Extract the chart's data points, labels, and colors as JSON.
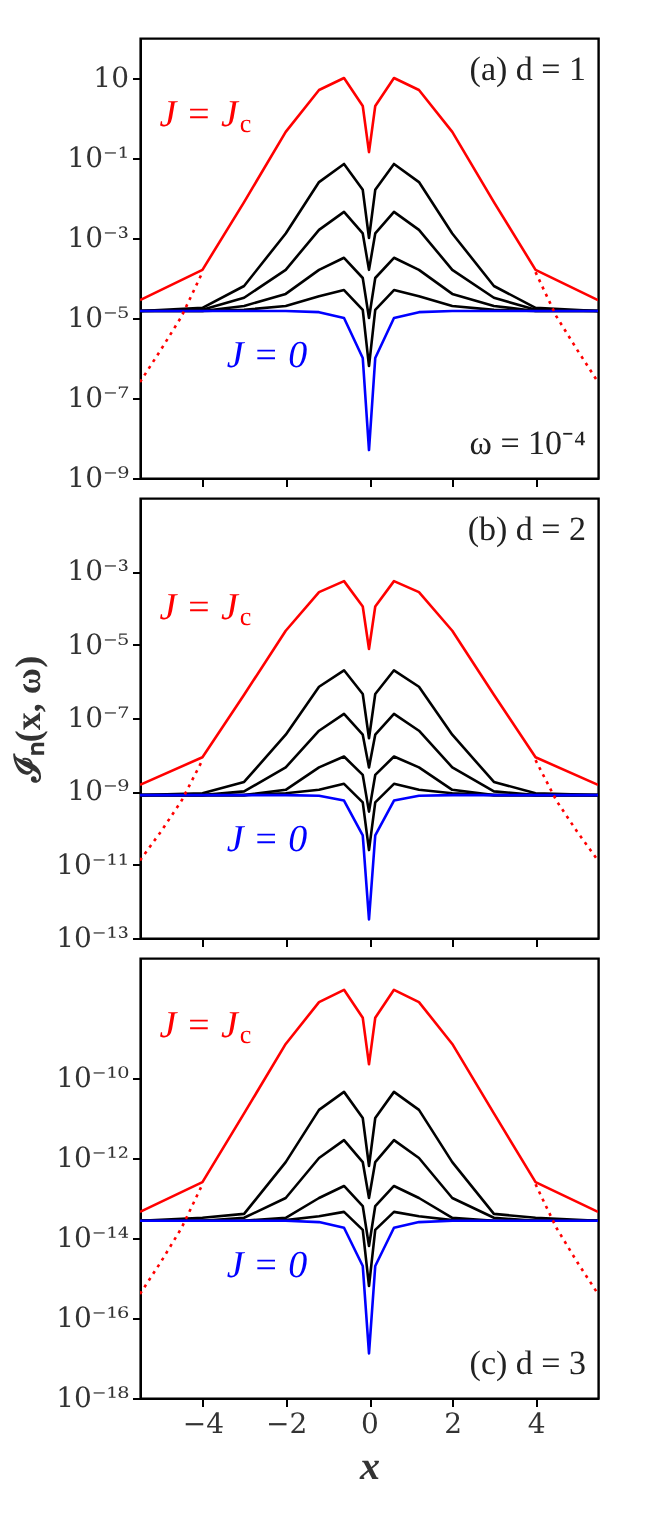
{
  "chart_data": [
    {
      "type": "line",
      "log": "y",
      "grid": false,
      "tick_labels": "y",
      "xlim": [
        -5.5,
        5.5
      ],
      "xticks": [
        -4,
        -2,
        0,
        2,
        4
      ],
      "ylim": [
        1e-09,
        100
      ],
      "yticks": [
        10,
        {
          "value": 0.1,
          "label": "10⁻¹"
        },
        {
          "value": 0.001,
          "label": "10⁻³"
        },
        {
          "value": 1e-05,
          "label": "10⁻⁵"
        },
        {
          "value": 1e-07,
          "label": "10⁻⁷"
        },
        {
          "value": 1e-09,
          "label": "10⁻⁹"
        }
      ],
      "x": [
        -5.5,
        -4,
        -3,
        -2,
        -1.2,
        -0.6,
        -0.15,
        0,
        0.15,
        0.6,
        1.2,
        2,
        3,
        4,
        5.5
      ],
      "series": [
        {
          "color": "#000000",
          "values": [
            1.5e-05,
            1.8e-05,
            6.3e-05,
            0.0013,
            0.025,
            0.071,
            0.016,
            0.001,
            0.016,
            0.071,
            0.025,
            0.0013,
            6.3e-05,
            1.8e-05,
            1.5e-05
          ]
        },
        {
          "color": "#000000",
          "values": [
            1.5e-05,
            1.6e-05,
            3.2e-05,
            0.00016,
            0.0016,
            0.0045,
            0.0013,
            0.00016,
            0.0013,
            0.0045,
            0.0016,
            0.00016,
            3.2e-05,
            1.6e-05,
            1.5e-05
          ]
        },
        {
          "color": "#000000",
          "values": [
            1.5e-05,
            1.5e-05,
            2e-05,
            4e-05,
            0.00016,
            0.00032,
            0.0001,
            1e-05,
            0.0001,
            0.00032,
            0.00016,
            4e-05,
            2e-05,
            1.5e-05,
            1.5e-05
          ]
        },
        {
          "color": "#000000",
          "values": [
            1.5e-05,
            1.5e-05,
            1.6e-05,
            2e-05,
            3.5e-05,
            5e-05,
            1.6e-05,
            6.3e-07,
            1.6e-05,
            5e-05,
            3.5e-05,
            2e-05,
            1.6e-05,
            1.5e-05,
            1.5e-05
          ]
        },
        {
          "name": "J = 0",
          "color": "#0000ff",
          "values": [
            1.5e-05,
            1.5e-05,
            1.5e-05,
            1.5e-05,
            1.4e-05,
            1e-05,
            1e-06,
            5e-09,
            1e-06,
            1e-05,
            1.4e-05,
            1.5e-05,
            1.5e-05,
            1.5e-05,
            1.5e-05
          ]
        },
        {
          "color": "#ff0000",
          "line_style": "dotted",
          "x": [
            -5.5,
            -5,
            -4.5,
            -4,
            0,
            4,
            4.5,
            5,
            5.5
          ],
          "values": [
            2.5e-07,
            1.6e-06,
            1.1e-05,
            0.00014,
            null,
            0.00014,
            1.1e-05,
            1.6e-06,
            2.5e-07
          ]
        },
        {
          "name": "J = J$_{c}$",
          "color": "#ff0000",
          "values": [
            2.8e-05,
            0.00016,
            0.0079,
            0.45,
            5.0,
            10,
            2.0,
            0.14,
            2.0,
            10,
            5.0,
            0.45,
            0.0079,
            0.00016,
            2.8e-05
          ]
        }
      ],
      "annotations": [
        "(a) d = 1",
        "ω = 10⁻⁴"
      ]
    },
    {
      "type": "line",
      "log": "y",
      "grid": false,
      "tick_labels": "y",
      "ylabel": "ℐₙ(x, ω)",
      "xlim": [
        -5.5,
        5.5
      ],
      "xticks": [
        -4,
        -2,
        0,
        2,
        4
      ],
      "ylim": [
        1e-13,
        0.1
      ],
      "yticks": [
        {
          "value": 0.001,
          "label": "10⁻³"
        },
        {
          "value": 1e-05,
          "label": "10⁻⁵"
        },
        {
          "value": 1e-07,
          "label": "10⁻⁷"
        },
        {
          "value": 1e-09,
          "label": "10⁻⁹"
        },
        {
          "value": 1e-11,
          "label": "10⁻¹¹"
        },
        {
          "value": 1e-13,
          "label": "10⁻¹³"
        }
      ],
      "x": [
        -5.5,
        -4,
        -3,
        -2,
        -1.2,
        -0.6,
        -0.15,
        0,
        0.15,
        0.6,
        1.2,
        2,
        3,
        4,
        5.5
      ],
      "series": [
        {
          "color": "#000000",
          "values": [
            7.9e-10,
            8.9e-10,
            1.8e-09,
            3.5e-08,
            7.1e-07,
            2e-06,
            4.5e-07,
            2.8e-08,
            4.5e-07,
            2e-06,
            7.1e-07,
            3.5e-08,
            1.8e-09,
            8.9e-10,
            7.9e-10
          ]
        },
        {
          "color": "#000000",
          "values": [
            7.9e-10,
            7.9e-10,
            1e-09,
            4.5e-09,
            4.5e-08,
            1.3e-07,
            3.5e-08,
            4.5e-09,
            3.5e-08,
            1.3e-07,
            4.5e-08,
            4.5e-09,
            1e-09,
            7.9e-10,
            7.9e-10
          ]
        },
        {
          "color": "#000000",
          "values": [
            7.9e-10,
            7.9e-10,
            7.9e-10,
            1.1e-09,
            4.5e-09,
            8.9e-09,
            2.8e-09,
            2.8e-10,
            2.8e-09,
            8.9e-09,
            4.5e-09,
            1.1e-09,
            7.9e-10,
            7.9e-10,
            7.9e-10
          ]
        },
        {
          "color": "#000000",
          "values": [
            7.9e-10,
            7.9e-10,
            7.9e-10,
            8.9e-10,
            1.1e-09,
            1.6e-09,
            5e-10,
            2.5e-11,
            5e-10,
            1.6e-09,
            1.1e-09,
            8.9e-10,
            7.9e-10,
            7.9e-10,
            7.9e-10
          ]
        },
        {
          "name": "J = 0",
          "color": "#0000ff",
          "values": [
            7.9e-10,
            7.9e-10,
            7.9e-10,
            7.9e-10,
            7.6e-10,
            5.6e-10,
            6.3e-11,
            3.2e-13,
            6.3e-11,
            5.6e-10,
            7.6e-10,
            7.9e-10,
            7.9e-10,
            7.9e-10,
            7.9e-10
          ]
        },
        {
          "color": "#ff0000",
          "line_style": "dotted",
          "x": [
            -5.5,
            -5,
            -4.5,
            -4,
            0,
            4,
            4.5,
            5,
            5.5
          ],
          "values": [
            1.3e-11,
            7.9e-11,
            5.6e-10,
            7.1e-09,
            null,
            7.1e-09,
            5.6e-10,
            7.9e-11,
            1.3e-11
          ]
        },
        {
          "name": "J = J$_{c}$",
          "color": "#ff0000",
          "values": [
            1.5e-09,
            8.5e-09,
            4.3e-07,
            2.4e-05,
            0.00027,
            0.00054,
            0.00011,
            7.6e-06,
            0.00011,
            0.00054,
            0.00027,
            2.4e-05,
            4.3e-07,
            8.5e-09,
            1.5e-09
          ]
        }
      ],
      "annotations": [
        "(b) d = 2"
      ]
    },
    {
      "type": "line",
      "log": "y",
      "grid": false,
      "xlabel": "x",
      "xlim": [
        -5.5,
        5.5
      ],
      "xticks": [
        -4,
        -2,
        0,
        2,
        4
      ],
      "ylim": [
        1e-18,
        1e-07
      ],
      "yticks": [
        {
          "value": 1e-10,
          "label": "10⁻¹⁰"
        },
        {
          "value": 1e-12,
          "label": "10⁻¹²"
        },
        {
          "value": 1e-14,
          "label": "10⁻¹⁴"
        },
        {
          "value": 1e-16,
          "label": "10⁻¹⁶"
        },
        {
          "value": 1e-18,
          "label": "10⁻¹⁸"
        }
      ],
      "x": [
        -5.5,
        -4,
        -3,
        -2,
        -1.2,
        -0.6,
        -0.15,
        0,
        0.15,
        0.6,
        1.2,
        2,
        3,
        4,
        5.5
      ],
      "series": [
        {
          "color": "#000000",
          "values": [
            2.7e-14,
            3.2e-14,
            4e-14,
            7.9e-13,
            1.6e-11,
            4.5e-11,
            1e-11,
            6.3e-13,
            1e-11,
            4.5e-11,
            1.6e-11,
            7.9e-13,
            4e-14,
            3.2e-14,
            2.7e-14
          ]
        },
        {
          "color": "#000000",
          "values": [
            2.7e-14,
            2.7e-14,
            3.2e-14,
            1e-13,
            1e-12,
            2.8e-12,
            7.9e-13,
            1e-13,
            7.9e-13,
            2.8e-12,
            1e-12,
            1e-13,
            3.2e-14,
            2.7e-14,
            2.7e-14
          ]
        },
        {
          "color": "#000000",
          "values": [
            2.7e-14,
            2.7e-14,
            2.7e-14,
            3.2e-14,
            1e-13,
            2e-13,
            6.3e-14,
            6.3e-15,
            6.3e-14,
            2e-13,
            1e-13,
            3.2e-14,
            2.7e-14,
            2.7e-14,
            2.7e-14
          ]
        },
        {
          "color": "#000000",
          "values": [
            2.7e-14,
            2.7e-14,
            2.7e-14,
            2.8e-14,
            3.5e-14,
            4.5e-14,
            1.6e-14,
            6.3e-16,
            1.6e-14,
            4.5e-14,
            3.5e-14,
            2.8e-14,
            2.7e-14,
            2.7e-14,
            2.7e-14
          ]
        },
        {
          "name": "J = 0",
          "color": "#0000ff",
          "values": [
            2.7e-14,
            2.7e-14,
            2.7e-14,
            2.7e-14,
            2.5e-14,
            1.8e-14,
            2e-15,
            1.3e-17,
            2e-15,
            1.8e-14,
            2.5e-14,
            2.7e-14,
            2.7e-14,
            2.7e-14,
            2.7e-14
          ]
        },
        {
          "color": "#ff0000",
          "line_style": "dotted",
          "x": [
            -5.5,
            -5,
            -4.5,
            -4,
            0,
            4,
            4.5,
            5,
            5.5
          ],
          "values": [
            4e-16,
            2.5e-15,
            1.8e-14,
            2.2e-13,
            null,
            2.2e-13,
            1.8e-14,
            2.5e-15,
            4e-16
          ]
        },
        {
          "name": "J = J$_{c}$",
          "color": "#ff0000",
          "values": [
            4.5e-14,
            2.5e-13,
            1.3e-11,
            7.1e-10,
            7.9e-09,
            1.6e-08,
            3.2e-09,
            2.2e-10,
            3.2e-09,
            1.6e-08,
            7.9e-09,
            7.1e-10,
            1.3e-11,
            2.5e-13,
            4.5e-14
          ]
        }
      ],
      "annotations": [
        "(c) d = 3"
      ]
    }
  ]
}
